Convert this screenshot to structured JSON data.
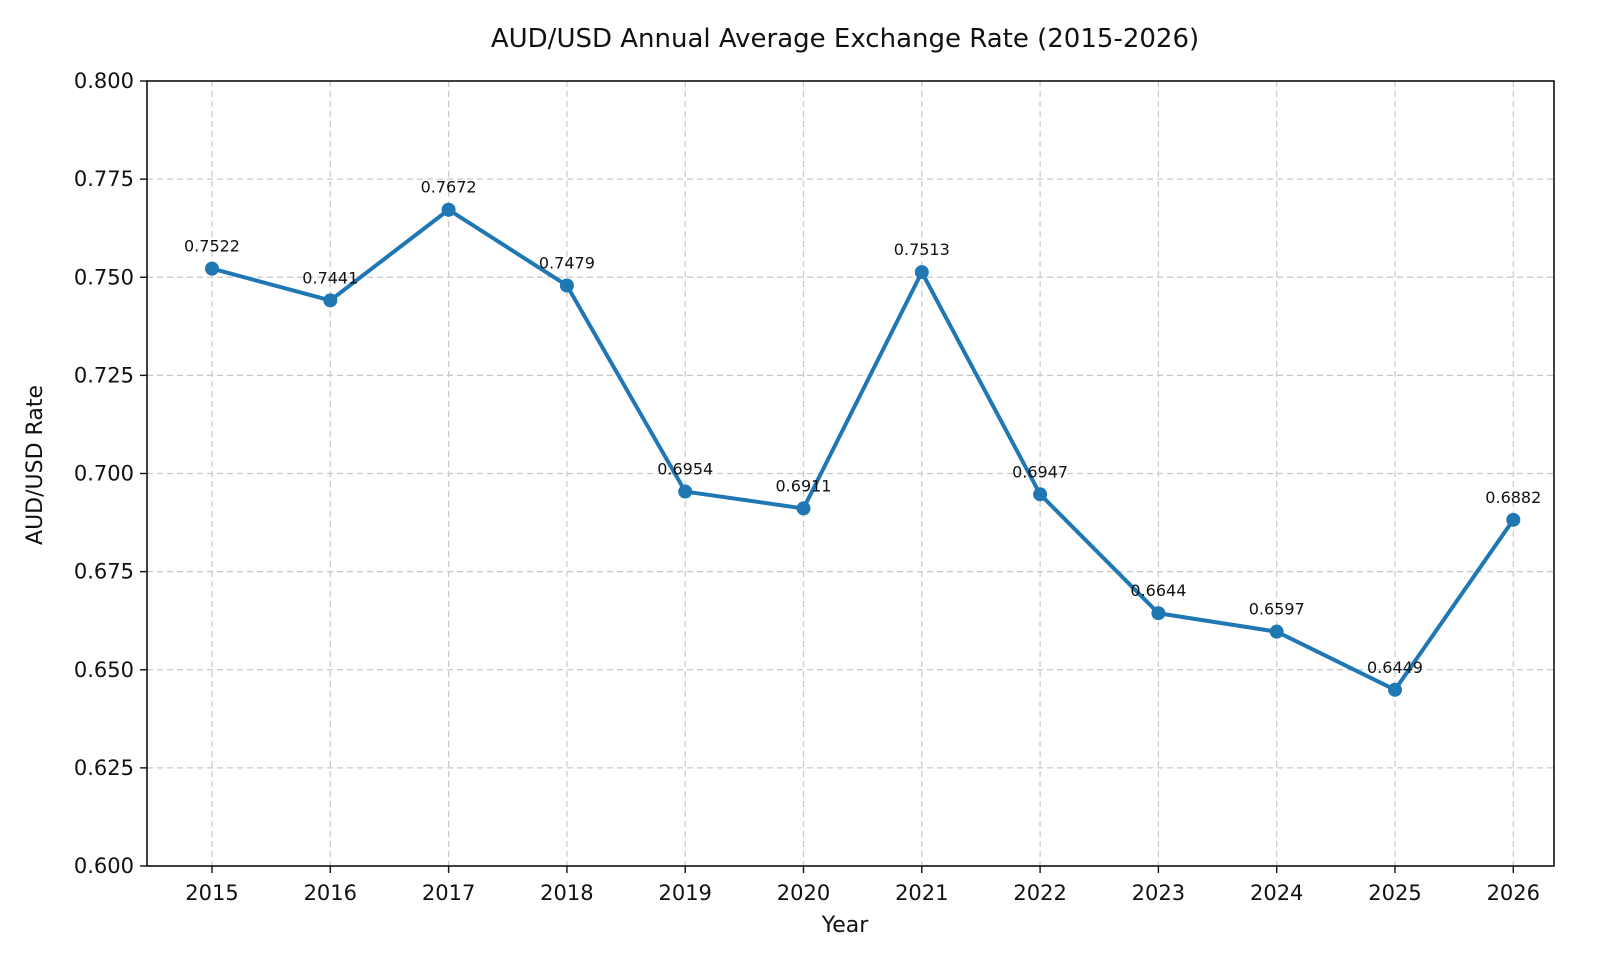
{
  "chart_data": {
    "type": "line",
    "title": "AUD/USD Annual Average Exchange Rate (2015-2026)",
    "xlabel": "Year",
    "ylabel": "AUD/USD Rate",
    "ylim": [
      0.6,
      0.8
    ],
    "yticks": [
      "0.600",
      "0.625",
      "0.650",
      "0.675",
      "0.700",
      "0.725",
      "0.750",
      "0.775",
      "0.800"
    ],
    "grid": true,
    "legend": "none",
    "colors": {
      "series": "#1f77b4"
    },
    "categories": [
      "2015",
      "2016",
      "2017",
      "2018",
      "2019",
      "2020",
      "2021",
      "2022",
      "2023",
      "2024",
      "2025",
      "2026"
    ],
    "series": [
      {
        "values": [
          0.7522,
          0.7441,
          0.7672,
          0.7479,
          0.6954,
          0.6911,
          0.7513,
          0.6947,
          0.6644,
          0.6597,
          0.6449,
          0.6882
        ],
        "labels": [
          "0.7522",
          "0.7441",
          "0.7672",
          "0.7479",
          "0.6954",
          "0.6911",
          "0.7513",
          "0.6947",
          "0.6644",
          "0.6597",
          "0.6449",
          "0.6882"
        ]
      }
    ]
  }
}
